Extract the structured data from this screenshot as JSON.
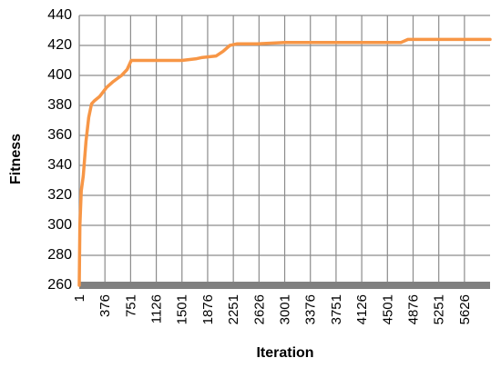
{
  "chart_data": {
    "type": "line",
    "title": "",
    "xlabel": "Iteration",
    "ylabel": "Fitness",
    "ylim": [
      260,
      440
    ],
    "yticks": [
      260,
      280,
      300,
      320,
      340,
      360,
      380,
      400,
      420,
      440
    ],
    "xlim": [
      1,
      6000
    ],
    "xticks": [
      1,
      376,
      751,
      1126,
      1501,
      1876,
      2251,
      2626,
      3001,
      3376,
      3751,
      4126,
      4501,
      4876,
      5251,
      5626
    ],
    "grid": true,
    "legend": "none",
    "series": [
      {
        "color": "#f79646",
        "x": [
          1,
          10,
          30,
          60,
          100,
          140,
          180,
          220,
          300,
          400,
          500,
          620,
          700,
          760,
          1000,
          1500,
          1700,
          1800,
          2000,
          2100,
          2200,
          2300,
          2600,
          3000,
          4000,
          4700,
          4800,
          5000,
          5500,
          6000
        ],
        "y": [
          260,
          300,
          323,
          333,
          356,
          372,
          381,
          383,
          386,
          392,
          396,
          400,
          404,
          410,
          410,
          410,
          411,
          412,
          413,
          416,
          420,
          421,
          421,
          422,
          422,
          422,
          424,
          424,
          424,
          424
        ]
      }
    ]
  }
}
